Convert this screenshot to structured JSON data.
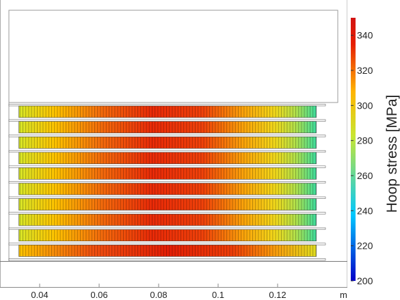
{
  "figure": {
    "x_unit": "m",
    "x_ticks": [
      "0.04",
      "0.06",
      "0.08",
      "0.1",
      "0.12"
    ],
    "colorbar": {
      "title": "Hoop stress [MPa]",
      "ticks": [
        "200",
        "220",
        "240",
        "260",
        "280",
        "300",
        "320",
        "340"
      ],
      "min": 200,
      "max": 350
    },
    "colormap": [
      "#0000c8",
      "#00c8ff",
      "#c8e632",
      "#ffb400",
      "#e61e00",
      "#d21414"
    ]
  },
  "chart_data": {
    "type": "heatmap",
    "x_unit": "m",
    "x_range": [
      0.033,
      0.133
    ],
    "x_ticks": [
      0.04,
      0.06,
      0.08,
      0.1,
      0.12
    ],
    "layers": 10,
    "stress_profile": {
      "x": [
        0.033,
        0.05,
        0.07,
        0.09,
        0.11,
        0.12,
        0.128,
        0.133
      ],
      "hoop_stress_MPa": [
        300,
        325,
        338,
        340,
        328,
        310,
        290,
        270
      ]
    },
    "colorbar_range": [
      200,
      350
    ],
    "colorbar_label": "Hoop stress [MPa]"
  }
}
